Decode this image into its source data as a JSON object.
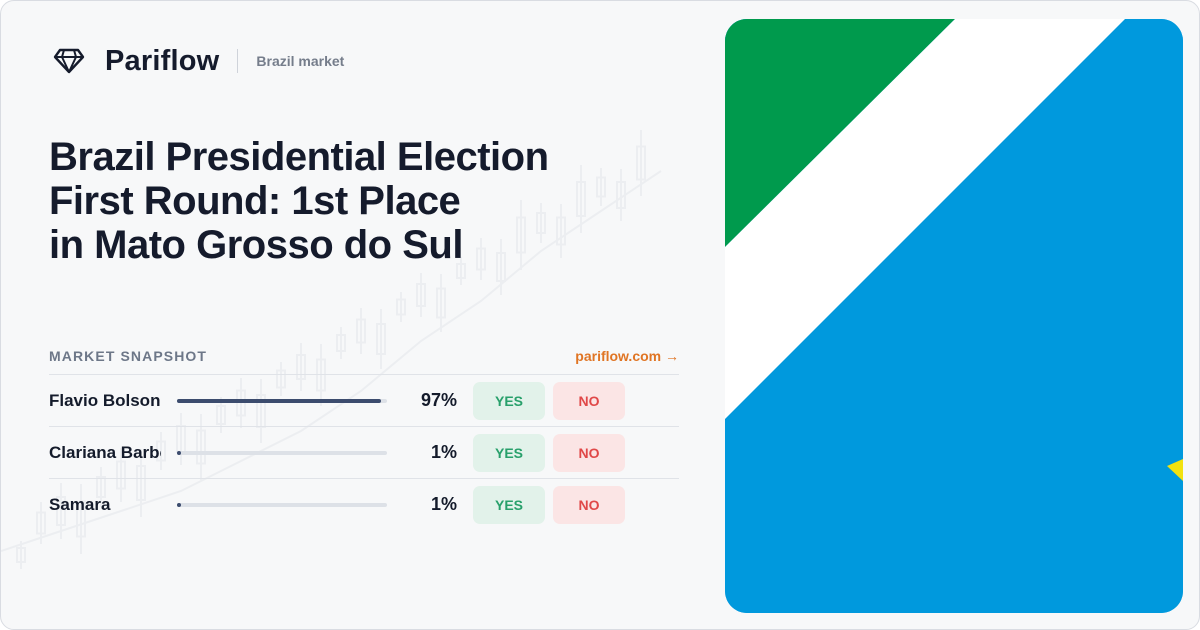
{
  "brand": {
    "name": "Pariflow",
    "market_tag": "Brazil market",
    "logo_icon": "diamond-icon"
  },
  "title_lines": [
    "Brazil Presidential Election",
    "First Round: 1st Place",
    "in Mato Grosso do Sul"
  ],
  "snapshot": {
    "label": "MARKET SNAPSHOT",
    "link_text": "pariflow.com →"
  },
  "outcomes": [
    {
      "name": "Flavio Bolsonaro",
      "percent_label": "97%",
      "probability": 0.97,
      "yes_label": "YES",
      "no_label": "NO"
    },
    {
      "name": "Clariana Barbosa",
      "percent_label": "1%",
      "probability": 0.01,
      "yes_label": "YES",
      "no_label": "NO"
    },
    {
      "name": "Samara",
      "percent_label": "1%",
      "probability": 0.01,
      "yes_label": "YES",
      "no_label": "NO"
    }
  ],
  "colors": {
    "accent_link": "#e07524",
    "yes_text": "#28a06b",
    "no_text": "#e04848",
    "flag_green": "#009a4d",
    "flag_white": "#ffffff",
    "flag_blue": "#0099dd",
    "flag_yellow": "#f2e20f"
  },
  "flag_image": {
    "name": "Mato Grosso do Sul flag",
    "icon": "flag-mato-grosso-do-sul"
  }
}
